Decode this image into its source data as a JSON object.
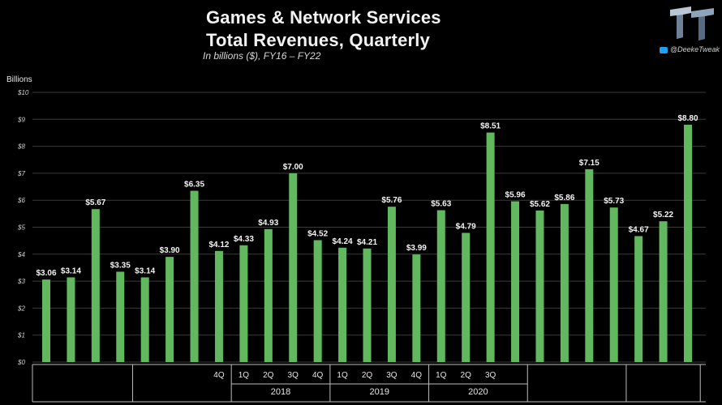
{
  "header": {
    "title_line1": "Games & Network Services",
    "title_line2": "Total Revenues, Quarterly",
    "subtitle": "In billions ($), FY16 – FY22",
    "handle": "@DeekeTweak"
  },
  "colors": {
    "bar": "#62b85e",
    "background": "#000000",
    "grid": "#3a3a3a"
  },
  "chart_data": {
    "type": "bar",
    "ylabel": "Billions",
    "ylim": [
      0,
      10
    ],
    "yticks": [
      "$0",
      "$1",
      "$2",
      "$3",
      "$4",
      "$5",
      "$6",
      "$7",
      "$8",
      "$9",
      "$10"
    ],
    "values": [
      3.06,
      3.14,
      5.67,
      3.35,
      3.14,
      3.9,
      6.35,
      4.12,
      4.33,
      4.93,
      7.0,
      4.52,
      4.24,
      4.21,
      5.76,
      3.99,
      5.63,
      4.79,
      8.51,
      5.96,
      5.62,
      5.86,
      7.15,
      5.73,
      4.67,
      5.22,
      8.8
    ],
    "data_labels": [
      "$3.06",
      "$3.14",
      "$5.67",
      "$3.35",
      "$3.14",
      "$3.90",
      "$6.35",
      "$4.12",
      "$4.33",
      "$4.93",
      "$7.00",
      "$4.52",
      "$4.24",
      "$4.21",
      "$5.76",
      "$3.99",
      "$5.63",
      "$4.79",
      "$8.51",
      "$5.96",
      "$5.62",
      "$5.86",
      "$7.15",
      "$5.73",
      "$4.67",
      "$5.22",
      "$8.80"
    ],
    "quarter_labels": [
      "",
      "",
      "",
      "",
      "",
      "",
      "",
      "4Q",
      "1Q",
      "2Q",
      "3Q",
      "4Q",
      "1Q",
      "2Q",
      "3Q",
      "4Q",
      "1Q",
      "2Q",
      "3Q",
      "",
      "",
      "",
      "",
      "",
      "",
      "",
      ""
    ],
    "year_groups": [
      {
        "label": "",
        "count": 4
      },
      {
        "label": "",
        "count": 4
      },
      {
        "label": "2018",
        "count": 4
      },
      {
        "label": "2019",
        "count": 4
      },
      {
        "label": "2020",
        "count": 4
      },
      {
        "label": "",
        "count": 4
      },
      {
        "label": "",
        "count": 3
      }
    ],
    "grid": true,
    "legend": "none"
  }
}
